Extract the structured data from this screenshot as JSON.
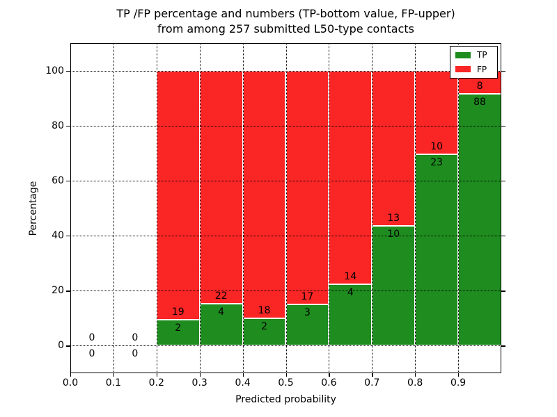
{
  "title": {
    "line1": "TP /FP percentage and numbers (TP-bottom value, FP-upper)",
    "line2": "from among 257 submitted L50-type contacts"
  },
  "chart_data": {
    "type": "bar",
    "stacked": true,
    "title": "TP /FP percentage and numbers (TP-bottom value, FP-upper)\nfrom among 257 submitted L50-type contacts",
    "xlabel": "Predicted probability",
    "ylabel": "Percentage",
    "xlim": [
      0.0,
      1.0
    ],
    "ylim": [
      -10,
      110
    ],
    "xticks": [
      0.0,
      0.1,
      0.2,
      0.3,
      0.4,
      0.5,
      0.6,
      0.7,
      0.8,
      0.9
    ],
    "xtick_labels": [
      "0.0",
      "0.1",
      "0.2",
      "0.3",
      "0.4",
      "0.5",
      "0.6",
      "0.7",
      "0.8",
      "0.9"
    ],
    "yticks": [
      0,
      20,
      40,
      60,
      80,
      100
    ],
    "ytick_labels": [
      "0",
      "20",
      "40",
      "60",
      "80",
      "100"
    ],
    "grid": true,
    "bar_mode": "percent-stacked-with-count-labels",
    "bin_edges": [
      0.0,
      0.1,
      0.2,
      0.3,
      0.4,
      0.5,
      0.6,
      0.7,
      0.8,
      0.9,
      1.0
    ],
    "series": [
      {
        "name": "TP",
        "color": "#1e8c1e",
        "counts": [
          0,
          0,
          2,
          4,
          2,
          3,
          4,
          10,
          23,
          88
        ]
      },
      {
        "name": "FP",
        "color": "#fa2525",
        "counts": [
          0,
          0,
          19,
          22,
          18,
          17,
          14,
          13,
          10,
          8
        ]
      }
    ],
    "total_contacts": 257,
    "legend": {
      "position": "upper-right",
      "entries": [
        {
          "label": "TP",
          "color": "#1e8c1e"
        },
        {
          "label": "FP",
          "color": "#fa2525"
        }
      ]
    }
  }
}
